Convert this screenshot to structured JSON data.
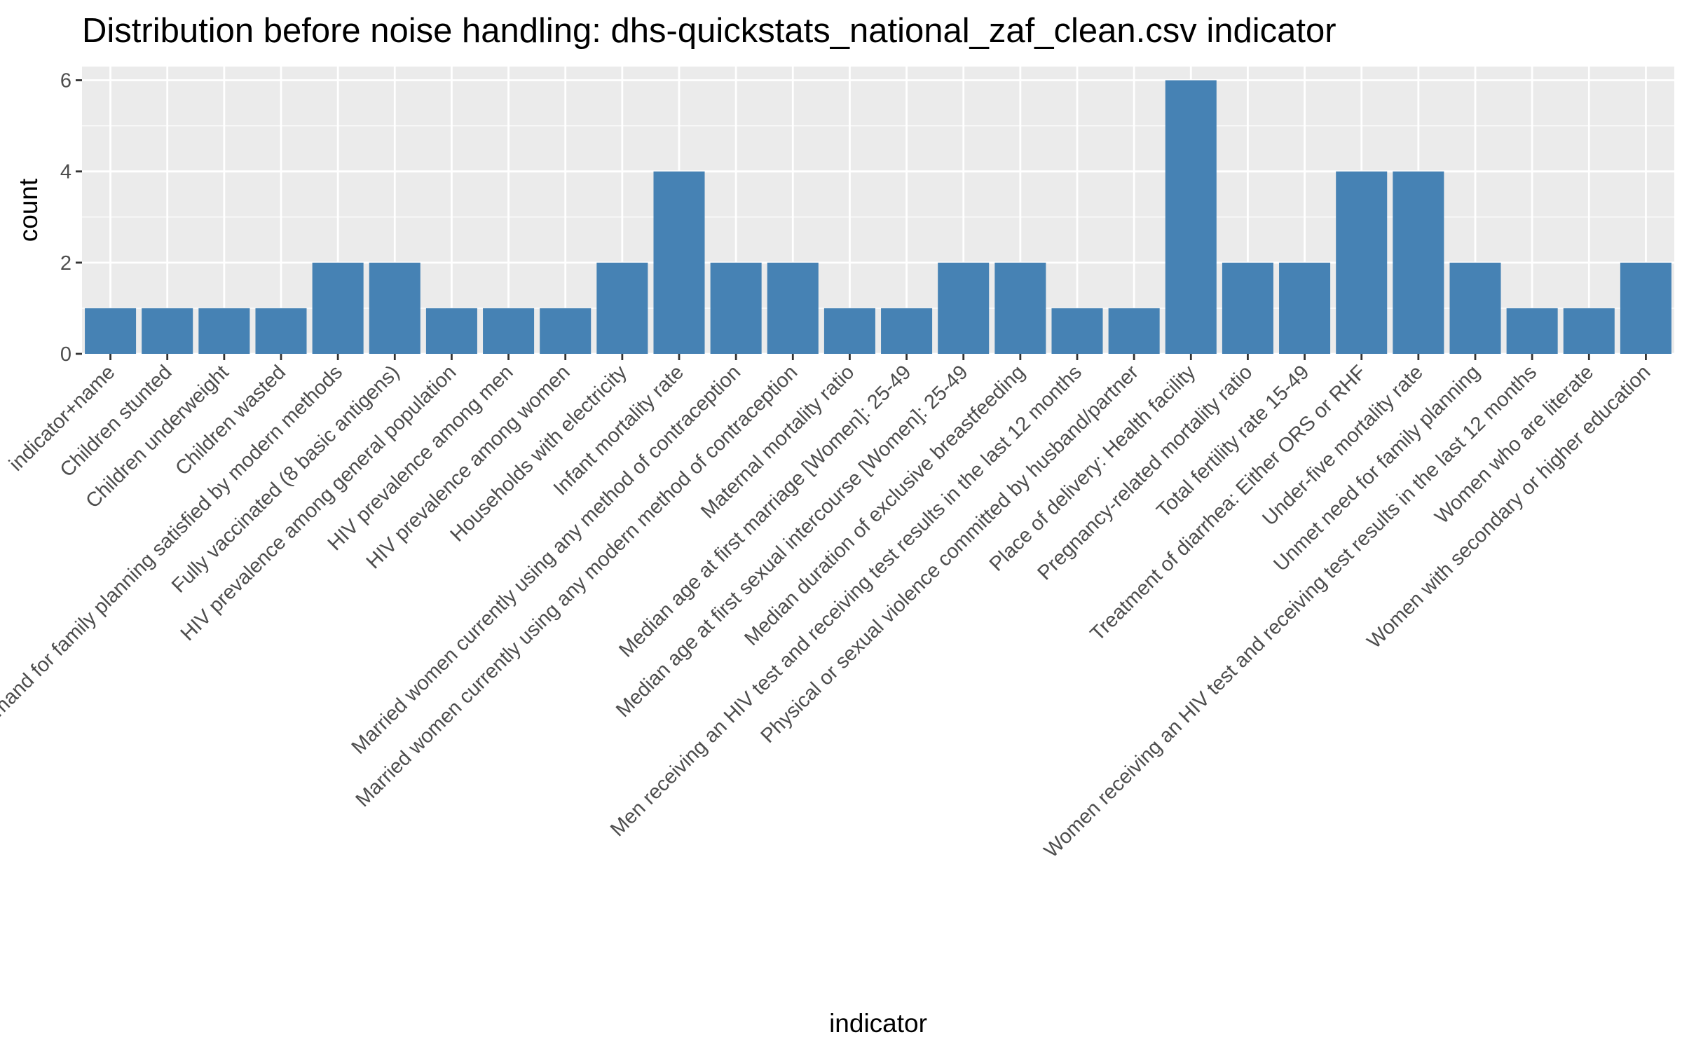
{
  "chart_data": {
    "type": "bar",
    "title": "Distribution before noise handling: dhs-quickstats_national_zaf_clean.csv indicator",
    "xlabel": "indicator",
    "ylabel": "count",
    "ylim": [
      0,
      6.3
    ],
    "yticks": [
      0,
      2,
      4,
      6
    ],
    "grid": true,
    "bar_color": "#4682B4",
    "panel_color": "#EBEBEB",
    "grid_color": "#FFFFFF",
    "categories": [
      "indicator+name",
      "Children stunted",
      "Children underweight",
      "Children wasted",
      "Demand for family planning satisfied by modern methods",
      "Fully vaccinated (8 basic antigens)",
      "HIV prevalence among general population",
      "HIV prevalence among men",
      "HIV prevalence among women",
      "Households with electricity",
      "Infant mortality rate",
      "Married women currently using any method of contraception",
      "Married women currently using any modern method of contraception",
      "Maternal mortality ratio",
      "Median age at first marriage [Women]: 25-49",
      "Median age at first sexual intercourse [Women]: 25-49",
      "Median duration of exclusive breastfeeding",
      "Men receiving an HIV test and receiving test results in the last 12 months",
      "Physical or sexual violence committed by husband/partner",
      "Place of delivery: Health facility",
      "Pregnancy-related mortality ratio",
      "Total fertility rate 15-49",
      "Treatment of diarrhea: Either ORS or RHF",
      "Under-five mortality rate",
      "Unmet need for family planning",
      "Women receiving an HIV test and receiving test results in the last 12 months",
      "Women who are literate",
      "Women with secondary or higher education"
    ],
    "values": [
      1,
      1,
      1,
      1,
      2,
      2,
      1,
      1,
      1,
      2,
      4,
      2,
      2,
      1,
      1,
      2,
      2,
      1,
      1,
      6,
      2,
      2,
      4,
      4,
      2,
      1,
      1,
      2
    ]
  }
}
